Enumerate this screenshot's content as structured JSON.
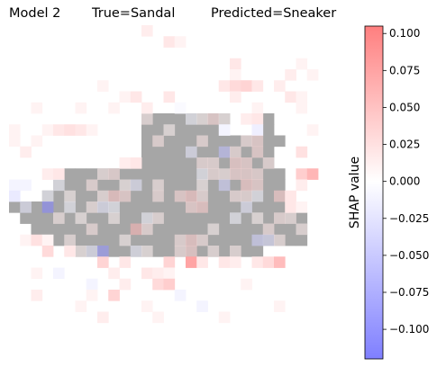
{
  "header": {
    "model": "Model 2",
    "true_label": "True=Sandal",
    "predicted_label": "Predicted=Sneaker"
  },
  "chart_data": {
    "type": "heatmap",
    "rows": 28,
    "cols": 28,
    "background": "#ffffff",
    "silhouette_color": "#a6a6a6",
    "colormap": [
      "#7f7fff",
      "#ffffff",
      "#ff7f7f"
    ],
    "colorbar": {
      "label": "SHAP value",
      "vmin": -0.12,
      "vmax": 0.105,
      "ticks": [
        0.1,
        0.075,
        0.05,
        0.025,
        0.0,
        -0.025,
        -0.05,
        -0.075,
        -0.1
      ],
      "tick_labels": [
        "0.100",
        "0.075",
        "0.050",
        "0.025",
        "0.000",
        "−0.025",
        "−0.050",
        "−0.075",
        "−0.100"
      ]
    },
    "silhouette_rows": [
      [
        8,
        12,
        19,
        23
      ],
      [
        9,
        12,
        18,
        23
      ],
      [
        10,
        12,
        24
      ],
      [
        11,
        12,
        23
      ],
      [
        12,
        12,
        23
      ],
      [
        13,
        5,
        24
      ],
      [
        14,
        4,
        24
      ],
      [
        15,
        3,
        24
      ],
      [
        16,
        0,
        24
      ],
      [
        17,
        1,
        26
      ],
      [
        18,
        2,
        26
      ],
      [
        19,
        4,
        26
      ],
      [
        20,
        6,
        22
      ]
    ],
    "shap_values": [
      [
        0,
        12,
        0.015
      ],
      [
        1,
        14,
        0.02
      ],
      [
        1,
        15,
        0.01
      ],
      [
        3,
        20,
        0.02
      ],
      [
        3,
        26,
        0.01
      ],
      [
        4,
        20,
        0.01
      ],
      [
        4,
        25,
        0.015
      ],
      [
        4,
        27,
        0.01
      ],
      [
        5,
        8,
        0.01
      ],
      [
        5,
        19,
        0.02
      ],
      [
        5,
        20,
        0.03
      ],
      [
        5,
        21,
        0.035
      ],
      [
        5,
        22,
        0.02
      ],
      [
        5,
        24,
        0.015
      ],
      [
        6,
        10,
        0.01
      ],
      [
        6,
        11,
        0.02
      ],
      [
        6,
        14,
        0.02
      ],
      [
        6,
        20,
        0.015
      ],
      [
        6,
        25,
        0.02
      ],
      [
        6,
        26,
        0.01
      ],
      [
        7,
        2,
        0.01
      ],
      [
        7,
        6,
        0.01
      ],
      [
        7,
        9,
        0.01
      ],
      [
        7,
        12,
        0.015
      ],
      [
        7,
        15,
        -0.005
      ],
      [
        7,
        22,
        0.01
      ],
      [
        7,
        26,
        0.01
      ],
      [
        8,
        12,
        0.015
      ],
      [
        8,
        16,
        -0.01
      ],
      [
        8,
        17,
        0.01
      ],
      [
        8,
        18,
        0.03
      ],
      [
        8,
        19,
        0.01
      ],
      [
        8,
        21,
        0.015
      ],
      [
        8,
        22,
        0.02
      ],
      [
        9,
        0,
        0.01
      ],
      [
        9,
        3,
        0.01
      ],
      [
        9,
        4,
        0.02
      ],
      [
        9,
        5,
        0.025
      ],
      [
        9,
        6,
        0.02
      ],
      [
        9,
        7,
        0.01
      ],
      [
        9,
        14,
        0.01
      ],
      [
        9,
        19,
        -0.01
      ],
      [
        9,
        22,
        -0.015
      ],
      [
        9,
        27,
        0.01
      ],
      [
        10,
        0,
        0.01
      ],
      [
        10,
        2,
        0.01
      ],
      [
        10,
        13,
        0.02
      ],
      [
        10,
        17,
        0.02
      ],
      [
        10,
        21,
        0.02
      ],
      [
        10,
        22,
        0.03
      ],
      [
        11,
        1,
        0.015
      ],
      [
        11,
        16,
        -0.02
      ],
      [
        11,
        19,
        -0.06
      ],
      [
        11,
        20,
        0.02
      ],
      [
        11,
        22,
        0.03
      ],
      [
        11,
        26,
        0.025
      ],
      [
        12,
        10,
        0.015
      ],
      [
        12,
        11,
        0.02
      ],
      [
        12,
        17,
        0.02
      ],
      [
        12,
        18,
        0.02
      ],
      [
        12,
        20,
        0.035
      ],
      [
        12,
        21,
        0.03
      ],
      [
        12,
        23,
        0.02
      ],
      [
        13,
        3,
        0.015
      ],
      [
        13,
        4,
        0.02
      ],
      [
        13,
        8,
        0.015
      ],
      [
        13,
        9,
        0.025
      ],
      [
        13,
        17,
        -0.01
      ],
      [
        13,
        18,
        0.02
      ],
      [
        13,
        19,
        0.015
      ],
      [
        13,
        20,
        0.03
      ],
      [
        13,
        21,
        0.03
      ],
      [
        13,
        22,
        0.025
      ],
      [
        13,
        26,
        0.04
      ],
      [
        13,
        27,
        0.06
      ],
      [
        14,
        0,
        -0.01
      ],
      [
        14,
        1,
        -0.01
      ],
      [
        14,
        4,
        -0.01
      ],
      [
        14,
        7,
        0.02
      ],
      [
        14,
        10,
        0.01
      ],
      [
        14,
        11,
        -0.02
      ],
      [
        14,
        13,
        0.015
      ],
      [
        14,
        17,
        0.01
      ],
      [
        14,
        19,
        -0.04
      ],
      [
        14,
        21,
        0.04
      ],
      [
        14,
        22,
        0.03
      ],
      [
        14,
        26,
        0.015
      ],
      [
        15,
        0,
        -0.02
      ],
      [
        15,
        3,
        -0.01
      ],
      [
        15,
        5,
        0.01
      ],
      [
        15,
        8,
        0.015
      ],
      [
        15,
        9,
        0.045
      ],
      [
        15,
        10,
        0.03
      ],
      [
        15,
        13,
        0.02
      ],
      [
        15,
        15,
        0.03
      ],
      [
        15,
        16,
        0.045
      ],
      [
        15,
        17,
        0.02
      ],
      [
        15,
        20,
        0.02
      ],
      [
        15,
        21,
        0.02
      ],
      [
        15,
        22,
        -0.01
      ],
      [
        15,
        24,
        0.04
      ],
      [
        15,
        25,
        0.02
      ],
      [
        16,
        1,
        -0.02
      ],
      [
        16,
        3,
        -0.115
      ],
      [
        16,
        5,
        -0.01
      ],
      [
        16,
        7,
        0.015
      ],
      [
        16,
        8,
        -0.02
      ],
      [
        16,
        9,
        -0.01
      ],
      [
        16,
        16,
        0.03
      ],
      [
        16,
        17,
        0.04
      ],
      [
        16,
        21,
        -0.02
      ],
      [
        16,
        25,
        0.02
      ],
      [
        16,
        26,
        0.01
      ],
      [
        17,
        4,
        0.015
      ],
      [
        17,
        6,
        0.01
      ],
      [
        17,
        9,
        0.01
      ],
      [
        17,
        12,
        -0.01
      ],
      [
        17,
        13,
        0.015
      ],
      [
        17,
        20,
        -0.01
      ],
      [
        17,
        22,
        0.01
      ],
      [
        17,
        24,
        0.02
      ],
      [
        17,
        25,
        0.015
      ],
      [
        18,
        7,
        0.02
      ],
      [
        18,
        11,
        0.06
      ],
      [
        18,
        12,
        0.02
      ],
      [
        18,
        18,
        0.01
      ],
      [
        18,
        23,
        0.02
      ],
      [
        18,
        26,
        0.015
      ],
      [
        19,
        1,
        0.01
      ],
      [
        19,
        2,
        0.025
      ],
      [
        19,
        3,
        0.01
      ],
      [
        19,
        5,
        0.015
      ],
      [
        19,
        10,
        0.01
      ],
      [
        19,
        15,
        0.02
      ],
      [
        19,
        16,
        0.04
      ],
      [
        19,
        17,
        0.02
      ],
      [
        19,
        22,
        -0.04
      ],
      [
        19,
        23,
        -0.03
      ],
      [
        19,
        24,
        0.015
      ],
      [
        20,
        3,
        0.03
      ],
      [
        20,
        5,
        0.02
      ],
      [
        20,
        6,
        0.01
      ],
      [
        20,
        7,
        -0.02
      ],
      [
        20,
        8,
        -0.1
      ],
      [
        20,
        11,
        -0.015
      ],
      [
        20,
        12,
        0.01
      ],
      [
        20,
        15,
        0.02
      ],
      [
        20,
        16,
        0.035
      ],
      [
        20,
        18,
        0.015
      ],
      [
        20,
        20,
        0.015
      ],
      [
        21,
        8,
        0.035
      ],
      [
        21,
        10,
        0.02
      ],
      [
        21,
        14,
        0.035
      ],
      [
        21,
        16,
        0.075
      ],
      [
        21,
        17,
        0.02
      ],
      [
        21,
        19,
        0.02
      ],
      [
        21,
        20,
        0.015
      ],
      [
        21,
        22,
        0.02
      ],
      [
        21,
        23,
        0.03
      ],
      [
        21,
        24,
        0.055
      ],
      [
        22,
        2,
        0.01
      ],
      [
        22,
        4,
        -0.01
      ],
      [
        22,
        9,
        0.015
      ],
      [
        22,
        12,
        0.02
      ],
      [
        22,
        13,
        0.015
      ],
      [
        22,
        14,
        0.01
      ],
      [
        23,
        7,
        -0.01
      ],
      [
        23,
        10,
        0.015
      ],
      [
        23,
        13,
        0.03
      ],
      [
        23,
        14,
        0.04
      ],
      [
        23,
        21,
        0.01
      ],
      [
        24,
        2,
        0.015
      ],
      [
        24,
        7,
        0.01
      ],
      [
        24,
        9,
        0.035
      ],
      [
        24,
        15,
        -0.01
      ],
      [
        25,
        6,
        0.01
      ],
      [
        25,
        12,
        0.01
      ],
      [
        25,
        17,
        -0.01
      ],
      [
        25,
        24,
        0.01
      ],
      [
        26,
        8,
        0.015
      ],
      [
        26,
        13,
        0.01
      ],
      [
        26,
        19,
        0.01
      ]
    ]
  }
}
